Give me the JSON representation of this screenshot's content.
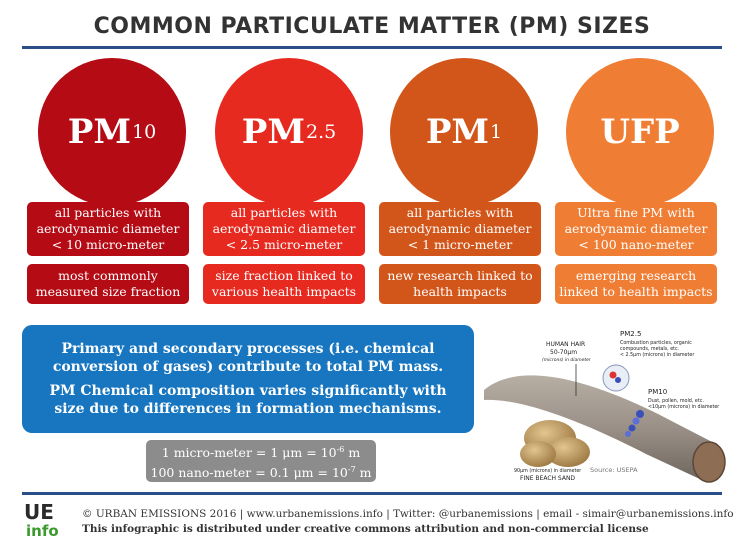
{
  "title": "COMMON PARTICULATE MATTER (PM) SIZES",
  "colors": {
    "pm10": "#b40b14",
    "pm25": "#e62a20",
    "pm1": "#d2561a",
    "ufp": "#ef7d33",
    "blue": "#1776bf",
    "gray": "#8c8c8c",
    "rule": "#2a4f88"
  },
  "categories": [
    {
      "base": "PM",
      "sub": "10",
      "definition": "all particles with aerodynamic diameter < 10 micro-meter",
      "note": "most commonly measured size fraction"
    },
    {
      "base": "PM",
      "sub": "2.5",
      "definition": "all particles with aerodynamic diameter < 2.5 micro-meter",
      "note": "size fraction linked to various health impacts"
    },
    {
      "base": "PM",
      "sub": "1",
      "definition": "all particles with aerodynamic diameter < 1 micro-meter",
      "note": "new research linked to health impacts"
    },
    {
      "base": "UFP",
      "sub": "",
      "definition": "Ultra fine PM with aerodynamic diameter < 100 nano-meter",
      "note": "emerging research linked to health impacts"
    }
  ],
  "info": {
    "line1": "Primary and secondary processes (i.e. chemical conversion of gases) contribute to total PM mass.",
    "line2": "PM Chemical composition varies significantly with size due to differences in formation mechanisms."
  },
  "conversions": {
    "line1_a": "1 micro-meter = 1 ",
    "line1_unit": "μm",
    "line1_b": " = 10",
    "line1_exp": "-6",
    "line1_c": " m",
    "line2_a": "100 nano-meter = 0.1 ",
    "line2_unit": "μm",
    "line2_b": " = 10",
    "line2_exp": "-7",
    "line2_c": " m"
  },
  "illustration": {
    "hair_label": "HUMAN HAIR",
    "hair_size": "50-70μm",
    "hair_unit": "(microns) in diameter",
    "pm25_label": "PM2.5",
    "pm25_desc1": "Combustion particles, organic",
    "pm25_desc2": "compounds, metals, etc.",
    "pm25_desc3": "< 2.5μm (microns) in diameter",
    "pm10_label": "PM10",
    "pm10_desc1": "Dust, pollen, mold, etc.",
    "pm10_desc2": "<10μm (microns) in diameter",
    "sand_size": "90μm (microns) in diameter",
    "sand_label": "FINE BEACH SAND",
    "source": "Source: USEPA"
  },
  "logo": {
    "top": "UE",
    "bottom": "info"
  },
  "footer": {
    "line1": "© URBAN EMISSIONS 2016 | www.urbanemissions.info | Twitter: @urbanemissions | email - simair@urbanemissions.info",
    "line2": "This infographic is distributed under creative commons attribution and non-commercial license"
  }
}
